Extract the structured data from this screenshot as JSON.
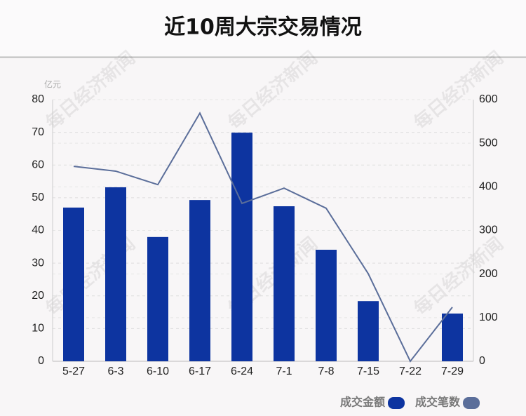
{
  "chart_data": {
    "type": "bar",
    "title": "近10周大宗交易情况",
    "y_unit": "亿元",
    "watermark": "每日经济新闻",
    "categories": [
      "5-27",
      "6-3",
      "6-10",
      "6-17",
      "6-24",
      "7-1",
      "7-8",
      "7-15",
      "7-22",
      "7-29"
    ],
    "series": [
      {
        "name": "成交金额",
        "color": "#0d34a0",
        "type": "bar",
        "axis": "y",
        "values": [
          47.0,
          53.2,
          38.0,
          49.3,
          69.9,
          47.4,
          34.1,
          18.4,
          0,
          14.6
        ]
      },
      {
        "name": "成交笔数",
        "color": "#5b6e9a",
        "type": "line",
        "axis": "y2",
        "values": [
          447,
          436,
          405,
          569,
          362,
          397,
          351,
          201,
          0,
          124
        ]
      }
    ],
    "ylim": [
      0,
      80
    ],
    "yticks": [
      0,
      10,
      20,
      30,
      40,
      50,
      60,
      70,
      80
    ],
    "y2lim": [
      0,
      600
    ],
    "y2ticks": [
      0,
      100,
      200,
      300,
      400,
      500,
      600
    ],
    "grid": true,
    "legend": "bottom-right"
  }
}
